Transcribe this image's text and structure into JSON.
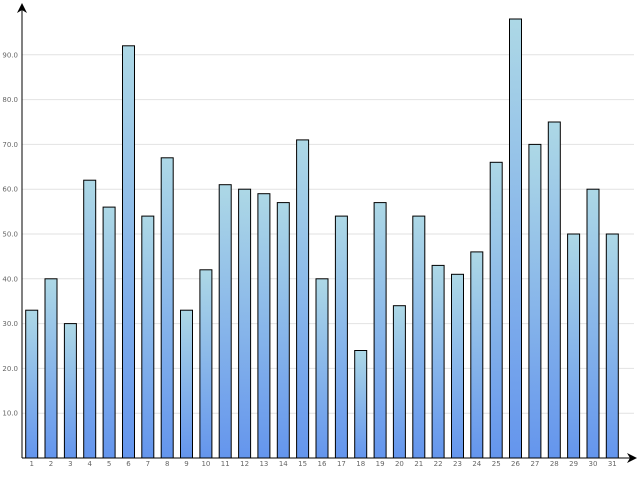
{
  "chart_data": {
    "type": "bar",
    "title": "",
    "xlabel": "",
    "ylabel": "",
    "categories": [
      "1",
      "2",
      "3",
      "4",
      "5",
      "6",
      "7",
      "8",
      "9",
      "10",
      "11",
      "12",
      "13",
      "14",
      "15",
      "16",
      "17",
      "18",
      "19",
      "20",
      "21",
      "22",
      "23",
      "24",
      "25",
      "26",
      "27",
      "28",
      "29",
      "30",
      "31"
    ],
    "values": [
      33,
      40,
      30,
      62,
      56,
      92,
      54,
      67,
      33,
      42,
      61,
      60,
      59,
      57,
      71,
      40,
      54,
      24,
      57,
      34,
      54,
      43,
      41,
      46,
      66,
      98,
      70,
      75,
      50,
      60,
      50
    ],
    "ylim": [
      0,
      100
    ],
    "yticks": [
      "10.0",
      "20.0",
      "30.0",
      "40.0",
      "50.0",
      "60.0",
      "70.0",
      "80.0",
      "90.0"
    ],
    "grid": "horizontal",
    "legend": "none",
    "colors": {
      "bar_top": "#add8e6",
      "bar_bottom": "#6495ed",
      "edge": "#000000",
      "grid": "#e2e2e2"
    }
  }
}
